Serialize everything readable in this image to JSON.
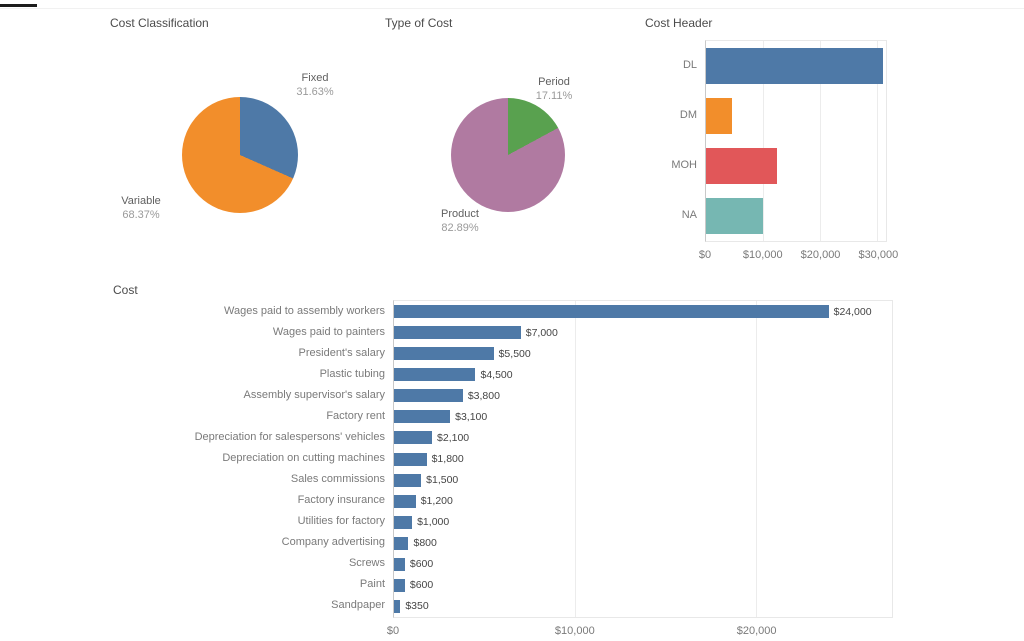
{
  "page": {
    "background": "#ffffff",
    "accent_blue": "#4e79a7",
    "accent_orange": "#f28e2b",
    "accent_red": "#e15759",
    "accent_teal": "#76b7b2",
    "accent_green": "#59a14f",
    "accent_purple": "#b07aa1"
  },
  "chart_data": [
    {
      "type": "pie",
      "title": "Cost Classification",
      "slices": [
        {
          "label": "Fixed",
          "pct": 31.63,
          "pct_label": "31.63%",
          "color": "#4e79a7"
        },
        {
          "label": "Variable",
          "pct": 68.37,
          "pct_label": "68.37%",
          "color": "#f28e2b"
        }
      ],
      "legend_position": "none"
    },
    {
      "type": "pie",
      "title": "Type of Cost",
      "slices": [
        {
          "label": "Period",
          "pct": 17.11,
          "pct_label": "17.11%",
          "color": "#59a14f"
        },
        {
          "label": "Product",
          "pct": 82.89,
          "pct_label": "82.89%",
          "color": "#b07aa1"
        }
      ],
      "legend_position": "none"
    },
    {
      "type": "bar",
      "orientation": "horizontal",
      "title": "Cost Header",
      "categories": [
        "DL",
        "DM",
        "MOH",
        "NA"
      ],
      "values": [
        31000,
        4500,
        12450,
        9900
      ],
      "colors": [
        "#4e79a7",
        "#f28e2b",
        "#e15759",
        "#76b7b2"
      ],
      "xlim": [
        0,
        31500
      ],
      "xticks": [
        "$0",
        "$10,000",
        "$20,000",
        "$30,000"
      ],
      "xtick_values": [
        0,
        10000,
        20000,
        30000
      ],
      "xlabel": "",
      "ylabel": "",
      "grid": true
    },
    {
      "type": "bar",
      "orientation": "horizontal",
      "title": "Cost",
      "categories": [
        "Wages paid to assembly workers",
        "Wages paid to painters",
        "President's salary",
        "Plastic tubing",
        "Assembly supervisor's salary",
        "Factory rent",
        "Depreciation for salespersons' vehicles",
        "Depreciation on cutting machines",
        "Sales commissions",
        "Factory insurance",
        "Utilities for factory",
        "Company advertising",
        "Screws",
        "Paint",
        "Sandpaper"
      ],
      "values": [
        24000,
        7000,
        5500,
        4500,
        3800,
        3100,
        2100,
        1800,
        1500,
        1200,
        1000,
        800,
        600,
        600,
        350
      ],
      "value_labels": [
        "$24,000",
        "$7,000",
        "$5,500",
        "$4,500",
        "$3,800",
        "$3,100",
        "$2,100",
        "$1,800",
        "$1,500",
        "$1,200",
        "$1,000",
        "$800",
        "$600",
        "$600",
        "$350"
      ],
      "color": "#4e79a7",
      "xlim": [
        0,
        27500
      ],
      "xticks": [
        "$0",
        "$10,000",
        "$20,000"
      ],
      "xtick_values": [
        0,
        10000,
        20000
      ],
      "xlabel": "",
      "ylabel": "",
      "grid": true
    }
  ]
}
